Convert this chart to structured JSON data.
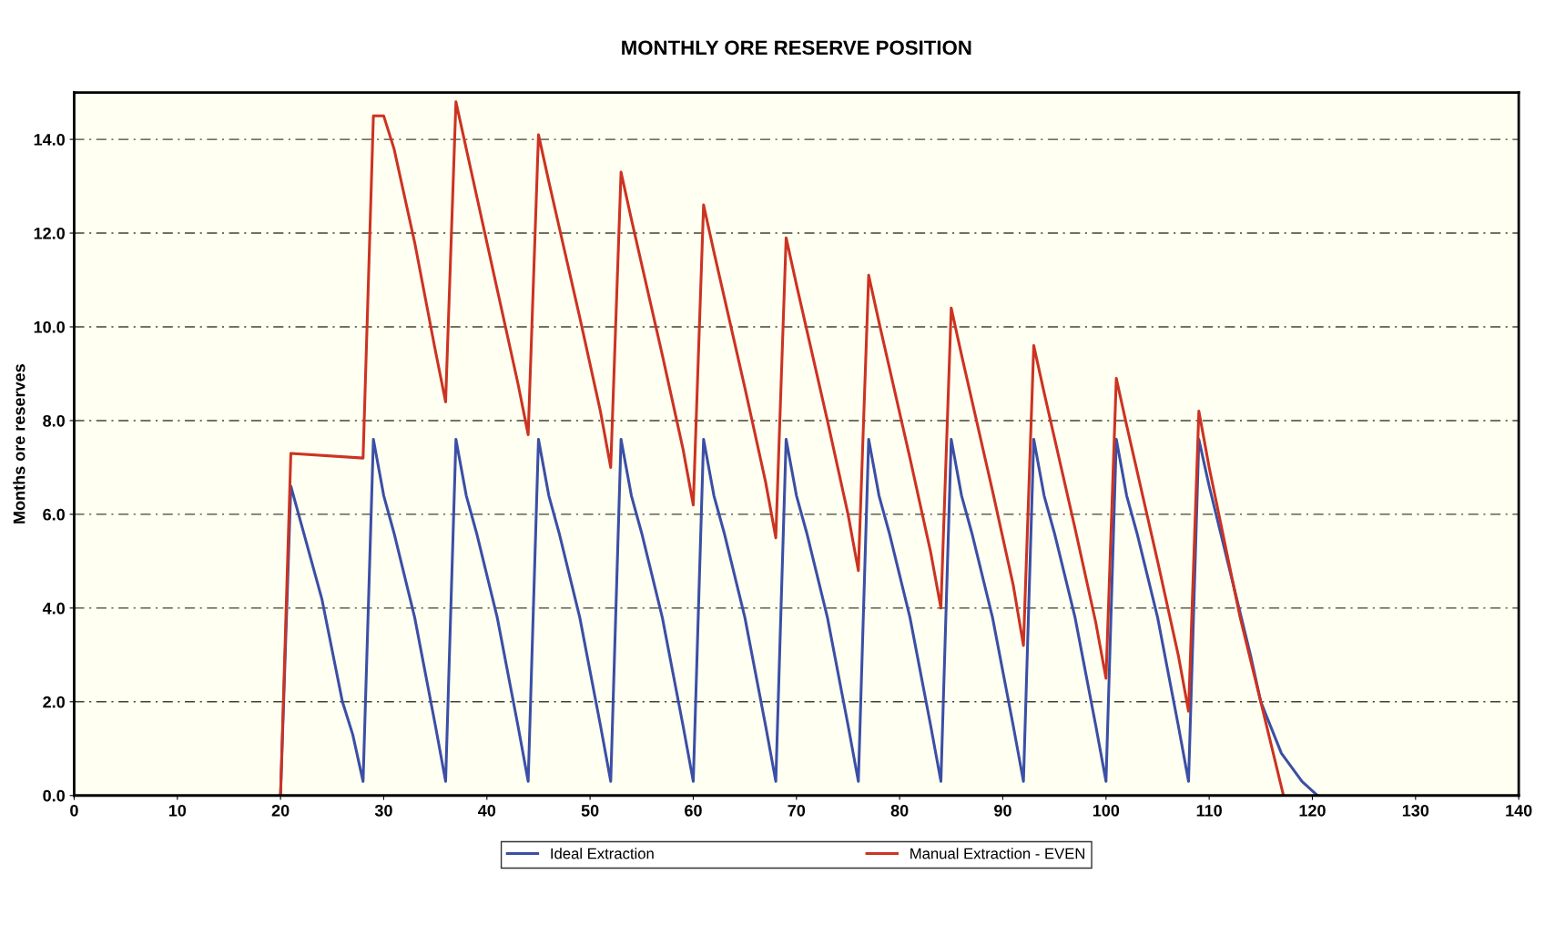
{
  "chart_data": {
    "type": "line",
    "title": "MONTHLY ORE RESERVE POSITION",
    "ylabel": "Months ore reserves",
    "xlim": [
      0,
      140
    ],
    "xticks": [
      0,
      10,
      20,
      30,
      40,
      50,
      60,
      70,
      80,
      90,
      100,
      110,
      120,
      130,
      140
    ],
    "ylim": [
      0,
      15
    ],
    "yticks": [
      {
        "value": 0,
        "label": "0.0"
      },
      {
        "value": 2,
        "label": "2.0"
      },
      {
        "value": 4,
        "label": "4.0"
      },
      {
        "value": 6,
        "label": "6.0"
      },
      {
        "value": 8,
        "label": "8.0"
      },
      {
        "value": 10,
        "label": "10.0"
      },
      {
        "value": 12,
        "label": "12.0"
      },
      {
        "value": 14,
        "label": "14.0"
      }
    ],
    "grid": "y",
    "legend": "bottom",
    "marker": "none",
    "line_style": "solid",
    "series": [
      {
        "name": "Ideal Extraction",
        "color": "#3b4fa6",
        "x": [
          20,
          21,
          22,
          24,
          26,
          27,
          28,
          29,
          30,
          31,
          33,
          35,
          36,
          37,
          38,
          39,
          41,
          43,
          44,
          45,
          46,
          47,
          49,
          51,
          52,
          53,
          54,
          55,
          57,
          59,
          60,
          61,
          62,
          63,
          65,
          67,
          68,
          69,
          70,
          71,
          73,
          75,
          76,
          77,
          78,
          79,
          81,
          83,
          84,
          85,
          86,
          87,
          89,
          91,
          92,
          93,
          94,
          95,
          97,
          99,
          100,
          101,
          102,
          103,
          105,
          107,
          108,
          109,
          110,
          112,
          114,
          115,
          117,
          119,
          120.5
        ],
        "values": [
          0,
          6.6,
          5.8,
          4.2,
          2.0,
          1.3,
          0.3,
          7.6,
          6.4,
          5.6,
          3.8,
          1.5,
          0.3,
          7.6,
          6.4,
          5.6,
          3.8,
          1.5,
          0.3,
          7.6,
          6.4,
          5.6,
          3.8,
          1.5,
          0.3,
          7.6,
          6.4,
          5.6,
          3.8,
          1.5,
          0.3,
          7.6,
          6.4,
          5.6,
          3.8,
          1.5,
          0.3,
          7.6,
          6.4,
          5.6,
          3.8,
          1.5,
          0.3,
          7.6,
          6.4,
          5.6,
          3.8,
          1.5,
          0.3,
          7.6,
          6.4,
          5.6,
          3.8,
          1.5,
          0.3,
          7.6,
          6.4,
          5.6,
          3.8,
          1.5,
          0.3,
          7.6,
          6.4,
          5.6,
          3.8,
          1.5,
          0.3,
          7.6,
          6.6,
          4.8,
          3.0,
          2.0,
          0.9,
          0.3,
          0
        ]
      },
      {
        "name": "Manual Extraction - EVEN",
        "color": "#cc3322",
        "x": [
          20,
          21,
          28,
          29,
          30,
          31,
          33,
          35,
          36,
          37,
          38,
          41,
          43,
          44,
          45,
          46,
          49,
          51,
          52,
          53,
          54,
          57,
          59,
          60,
          61,
          62,
          65,
          67,
          68,
          69,
          70,
          73,
          75,
          76,
          77,
          78,
          81,
          83,
          84,
          85,
          86,
          89,
          91,
          92,
          93,
          94,
          97,
          99,
          100,
          101,
          102,
          105,
          107,
          108,
          109,
          110,
          113,
          115,
          117.2
        ],
        "values": [
          0,
          7.3,
          7.2,
          14.5,
          14.5,
          13.8,
          11.8,
          9.5,
          8.4,
          14.8,
          13.8,
          10.8,
          8.8,
          7.7,
          14.1,
          13.1,
          10.2,
          8.2,
          7.0,
          13.3,
          12.3,
          9.4,
          7.4,
          6.2,
          12.6,
          11.6,
          8.7,
          6.7,
          5.5,
          11.9,
          10.9,
          8.0,
          6.0,
          4.8,
          11.1,
          10.1,
          7.2,
          5.2,
          4.0,
          10.4,
          9.4,
          6.5,
          4.5,
          3.2,
          9.6,
          8.6,
          5.7,
          3.7,
          2.5,
          8.9,
          7.9,
          5.0,
          3.0,
          1.8,
          8.2,
          7.0,
          3.8,
          2.0,
          0
        ]
      }
    ]
  }
}
